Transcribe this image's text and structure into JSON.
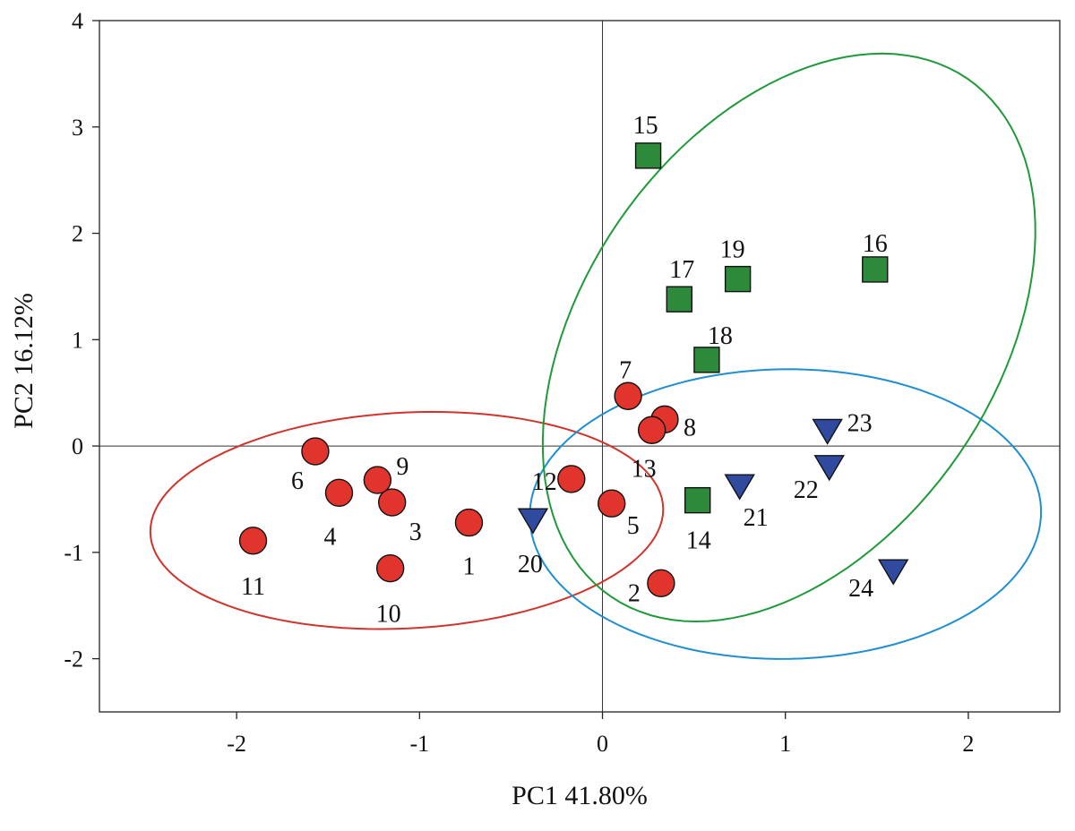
{
  "chart_data": {
    "type": "scatter",
    "xlabel": "PC1 41.80%",
    "ylabel": "PC2 16.12%",
    "xlim": [
      -2.75,
      2.5
    ],
    "ylim": [
      -2.5,
      4
    ],
    "x_ticks": [
      -2,
      -1,
      0,
      1,
      2
    ],
    "y_ticks": [
      -2,
      -1,
      0,
      1,
      2,
      3,
      4
    ],
    "x_tick_labels": [
      "-2",
      "-1",
      "0",
      "1",
      "2"
    ],
    "y_tick_labels": [
      "-2",
      "-1",
      "0",
      "1",
      "2",
      "3",
      "4"
    ],
    "reference_lines": {
      "x": 0,
      "y": 0
    },
    "series": [
      {
        "name": "group-red",
        "marker": "circle",
        "color": "#e0342c",
        "points": [
          {
            "label": "1",
            "x": -0.73,
            "y": -0.72
          },
          {
            "label": "2",
            "x": 0.32,
            "y": -1.29
          },
          {
            "label": "3",
            "x": -1.15,
            "y": -0.53
          },
          {
            "label": "4",
            "x": -1.44,
            "y": -0.44
          },
          {
            "label": "5",
            "x": 0.05,
            "y": -0.54
          },
          {
            "label": "6",
            "x": -1.57,
            "y": -0.05
          },
          {
            "label": "7",
            "x": 0.14,
            "y": 0.47
          },
          {
            "label": "8",
            "x": 0.34,
            "y": 0.25
          },
          {
            "label": "9",
            "x": -1.23,
            "y": -0.32
          },
          {
            "label": "10",
            "x": -1.16,
            "y": -1.15
          },
          {
            "label": "11",
            "x": -1.91,
            "y": -0.89
          },
          {
            "label": "12",
            "x": -0.17,
            "y": -0.31
          },
          {
            "label": "13",
            "x": 0.27,
            "y": 0.15
          }
        ]
      },
      {
        "name": "group-green",
        "marker": "square",
        "color": "#2c8a3a",
        "points": [
          {
            "label": "14",
            "x": 0.52,
            "y": -0.51
          },
          {
            "label": "15",
            "x": 0.25,
            "y": 2.73
          },
          {
            "label": "16",
            "x": 1.49,
            "y": 1.66
          },
          {
            "label": "17",
            "x": 0.42,
            "y": 1.38
          },
          {
            "label": "18",
            "x": 0.57,
            "y": 0.81
          },
          {
            "label": "19",
            "x": 0.74,
            "y": 1.57
          }
        ]
      },
      {
        "name": "group-blue",
        "marker": "triangle-down",
        "color": "#2f4a9e",
        "points": [
          {
            "label": "20",
            "x": -0.38,
            "y": -0.7
          },
          {
            "label": "21",
            "x": 0.75,
            "y": -0.38
          },
          {
            "label": "22",
            "x": 1.24,
            "y": -0.2
          },
          {
            "label": "23",
            "x": 1.23,
            "y": 0.14
          },
          {
            "label": "24",
            "x": 1.59,
            "y": -1.18
          }
        ]
      }
    ],
    "confidence_ellipses": [
      {
        "group": "group-red",
        "color": "#d0342c",
        "center": [
          -1.07,
          -0.7
        ],
        "semi_axes": [
          1.41,
          1.01
        ],
        "rotation_deg": 8.8
      },
      {
        "group": "group-blue",
        "color": "#1f8fcf",
        "center": [
          1.0,
          -0.64
        ],
        "semi_axes": [
          1.4,
          1.36
        ],
        "rotation_deg": 13.6
      },
      {
        "group": "group-green",
        "color": "#1f9a3a",
        "center": [
          1.02,
          1.02
        ],
        "semi_axes": [
          1.22,
          2.73
        ],
        "rotation_deg": -13.5
      }
    ]
  }
}
